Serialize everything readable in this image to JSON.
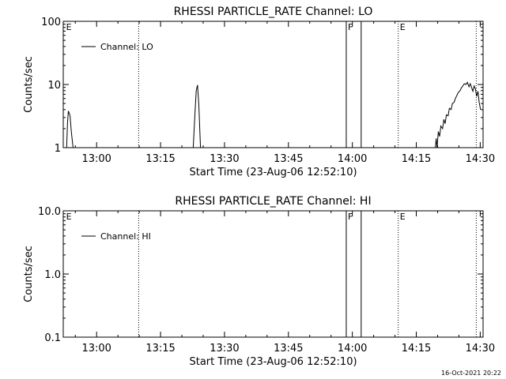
{
  "footer": {
    "timestamp": "16-Oct-2021 20:22"
  },
  "chart_data": [
    {
      "type": "line",
      "title": "RHESSI PARTICLE_RATE Channel: LO",
      "xlabel": "Start Time (23-Aug-06 12:52:10)",
      "ylabel": "Counts/sec",
      "yscale": "log",
      "ylim": [
        1,
        100
      ],
      "xlim_minutes": [
        0,
        98.5
      ],
      "x_ticks": [
        {
          "t": 7.83,
          "label": "13:00"
        },
        {
          "t": 22.83,
          "label": "13:15"
        },
        {
          "t": 37.83,
          "label": "13:30"
        },
        {
          "t": 52.83,
          "label": "13:45"
        },
        {
          "t": 67.83,
          "label": "14:00"
        },
        {
          "t": 82.83,
          "label": "14:15"
        },
        {
          "t": 97.83,
          "label": "14:30"
        }
      ],
      "y_ticks": [
        {
          "v": 1,
          "label": "1"
        },
        {
          "v": 10,
          "label": "10"
        },
        {
          "v": 100,
          "label": "100"
        }
      ],
      "legend": {
        "label": "Channel: LO",
        "position": "top-left"
      },
      "markers": [
        {
          "t": 0.3,
          "label": "E",
          "style": "none"
        },
        {
          "t": 17.7,
          "label": "",
          "style": "dotted"
        },
        {
          "t": 66.4,
          "label": "F",
          "style": "solid"
        },
        {
          "t": 69.9,
          "label": "",
          "style": "solid"
        },
        {
          "t": 78.6,
          "label": "E",
          "style": "dotted"
        },
        {
          "t": 96.9,
          "label": "",
          "style": "dotted"
        }
      ],
      "series": [
        {
          "name": "Channel: LO",
          "segments": [
            [
              [
                0.8,
                0.7
              ],
              [
                1.0,
                2.5
              ],
              [
                1.2,
                3.8
              ],
              [
                1.6,
                3.2
              ],
              [
                1.9,
                1.8
              ],
              [
                2.3,
                0.9
              ]
            ],
            [
              [
                30.5,
                0.8
              ],
              [
                30.9,
                3.5
              ],
              [
                31.2,
                8.0
              ],
              [
                31.5,
                9.8
              ],
              [
                31.8,
                5.0
              ],
              [
                32.2,
                0.8
              ]
            ],
            [
              [
                87.3,
                0.8
              ],
              [
                87.5,
                1.4
              ],
              [
                87.7,
                1.0
              ],
              [
                88.0,
                1.8
              ],
              [
                88.3,
                1.5
              ],
              [
                88.6,
                2.2
              ],
              [
                89.0,
                2.0
              ],
              [
                89.3,
                2.8
              ],
              [
                89.6,
                2.4
              ],
              [
                89.9,
                3.3
              ],
              [
                90.3,
                3.2
              ],
              [
                90.6,
                4.2
              ],
              [
                91.0,
                4.0
              ],
              [
                91.3,
                5.0
              ],
              [
                91.7,
                5.2
              ],
              [
                92.0,
                6.0
              ],
              [
                92.4,
                6.8
              ],
              [
                92.7,
                7.5
              ],
              [
                93.1,
                8.0
              ],
              [
                93.4,
                8.8
              ],
              [
                93.8,
                9.6
              ],
              [
                94.1,
                10.3
              ],
              [
                94.5,
                10.0
              ],
              [
                94.8,
                10.8
              ],
              [
                95.2,
                9.2
              ],
              [
                95.5,
                10.3
              ],
              [
                95.8,
                9.0
              ],
              [
                96.1,
                7.8
              ],
              [
                96.4,
                9.5
              ],
              [
                96.7,
                8.5
              ],
              [
                97.0,
                6.5
              ],
              [
                97.3,
                7.8
              ],
              [
                97.6,
                5.2
              ],
              [
                97.9,
                4.0
              ]
            ]
          ]
        }
      ]
    },
    {
      "type": "line",
      "title": "RHESSI PARTICLE_RATE Channel: HI",
      "xlabel": "Start Time (23-Aug-06 12:52:10)",
      "ylabel": "Counts/sec",
      "yscale": "log",
      "ylim": [
        0.1,
        10.0
      ],
      "xlim_minutes": [
        0,
        98.5
      ],
      "x_ticks": [
        {
          "t": 7.83,
          "label": "13:00"
        },
        {
          "t": 22.83,
          "label": "13:15"
        },
        {
          "t": 37.83,
          "label": "13:30"
        },
        {
          "t": 52.83,
          "label": "13:45"
        },
        {
          "t": 67.83,
          "label": "14:00"
        },
        {
          "t": 82.83,
          "label": "14:15"
        },
        {
          "t": 97.83,
          "label": "14:30"
        }
      ],
      "y_ticks": [
        {
          "v": 0.1,
          "label": "0.1"
        },
        {
          "v": 1.0,
          "label": "1.0"
        },
        {
          "v": 10.0,
          "label": "10.0"
        }
      ],
      "legend": {
        "label": "Channel: HI",
        "position": "top-left"
      },
      "markers": [
        {
          "t": 0.3,
          "label": "E",
          "style": "none"
        },
        {
          "t": 17.7,
          "label": "",
          "style": "dotted"
        },
        {
          "t": 66.4,
          "label": "F",
          "style": "solid"
        },
        {
          "t": 69.9,
          "label": "",
          "style": "solid"
        },
        {
          "t": 78.6,
          "label": "E",
          "style": "dotted"
        },
        {
          "t": 96.9,
          "label": "",
          "style": "dotted"
        }
      ],
      "series": [
        {
          "name": "Channel: HI",
          "segments": []
        }
      ]
    }
  ]
}
